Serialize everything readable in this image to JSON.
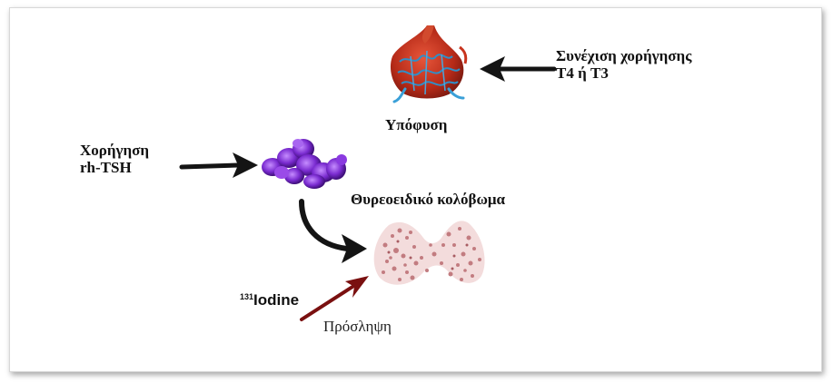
{
  "labels": {
    "pituitary": "Υπόφυση",
    "continue_line1": "Συνέχιση χορήγησης",
    "continue_line2": "T4 ή T3",
    "admin_line1": "Χορήγηση",
    "admin_line2": "rh-TSH",
    "thyroid": "Θυρεοειδικό κολόβωμα",
    "iodine_mass": "131",
    "iodine_name": "Iodine",
    "uptake": "Πρόσληψη"
  },
  "icons": {
    "pituitary": "pituitary-gland-icon",
    "tsh": "tsh-molecule-icon",
    "thyroid": "thyroid-remnant-icon"
  },
  "colors": {
    "arrow_black": "#141414",
    "arrow_red": "#7a1010",
    "gland_red": "#c8341e",
    "gland_vessel": "#2f8fc8",
    "molecule": "#7a2bd0",
    "thyroid": "#c98a8c"
  }
}
